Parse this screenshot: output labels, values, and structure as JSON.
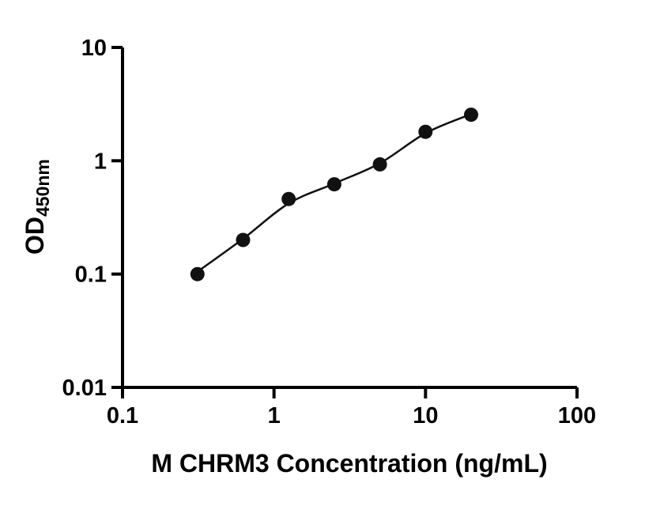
{
  "chart_data": {
    "type": "scatter",
    "title": "",
    "xlabel": "M CHRM3 Concentration (ng/mL)",
    "ylabel": "OD450nm",
    "ylabel_main": "OD",
    "ylabel_sub": "450nm",
    "x_scale": "log",
    "y_scale": "log",
    "xlim": [
      0.1,
      100
    ],
    "ylim": [
      0.01,
      10
    ],
    "x_ticks": [
      0.1,
      1,
      10,
      100
    ],
    "x_tick_labels": [
      "0.1",
      "1",
      "10",
      "100"
    ],
    "y_ticks": [
      0.01,
      0.1,
      1,
      10
    ],
    "y_tick_labels": [
      "0.01",
      "0.1",
      "1",
      "10"
    ],
    "grid": false,
    "legend": "none",
    "series": [
      {
        "x": [
          0.3125,
          0.625,
          1.25,
          2.5,
          5,
          10,
          20
        ],
        "y": [
          0.1,
          0.2,
          0.46,
          0.62,
          0.93,
          1.8,
          2.55
        ]
      }
    ],
    "trend_line": {
      "x": [
        0.3125,
        0.625,
        1.25,
        2.5,
        5,
        10,
        20
      ],
      "y": [
        0.105,
        0.205,
        0.42,
        0.63,
        0.95,
        1.75,
        2.58
      ]
    },
    "marker_color": "#111111",
    "line_color": "#111111",
    "axis_color": "#000000"
  }
}
